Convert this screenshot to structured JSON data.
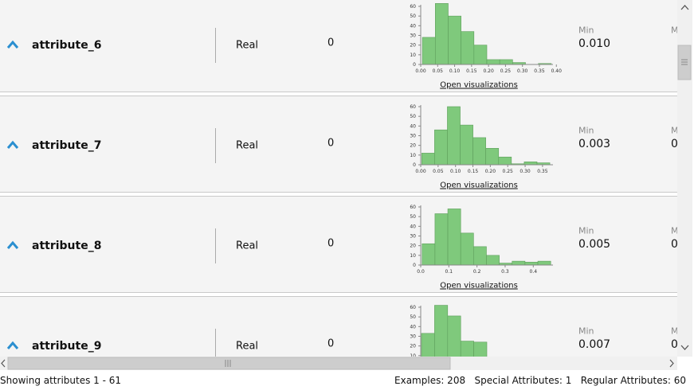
{
  "rows": [
    {
      "name": "attribute_6",
      "type": "Real",
      "missing": "0",
      "link": "Open visualizations",
      "min_label": "Min",
      "min_value": "0.010",
      "next_label": "M",
      "histogram": {
        "bins": [
          0.005,
          0.043,
          0.081,
          0.119,
          0.157,
          0.195,
          0.233,
          0.271,
          0.309,
          0.347,
          0.385
        ],
        "counts": [
          28,
          63,
          50,
          34,
          20,
          5,
          5,
          2,
          0,
          1
        ],
        "xlim": [
          0,
          0.39
        ],
        "ylim": [
          0,
          60
        ],
        "yticks": [
          0,
          10,
          20,
          30,
          40,
          50,
          60
        ],
        "xticks": [
          {
            "value": 0,
            "label": "0.00"
          },
          {
            "value": 0.05,
            "label": "0.05"
          },
          {
            "value": 0.1,
            "label": "0.10"
          },
          {
            "value": 0.15,
            "label": "0.15"
          },
          {
            "value": 0.2,
            "label": "0.20"
          },
          {
            "value": 0.25,
            "label": "0.25"
          },
          {
            "value": 0.3,
            "label": "0.30"
          },
          {
            "value": 0.35,
            "label": "0.35"
          },
          {
            "value": 0.4,
            "label": "0.40"
          }
        ]
      }
    },
    {
      "name": "attribute_7",
      "type": "Real",
      "missing": "0",
      "link": "Open visualizations",
      "min_label": "Min",
      "min_value": "0.003",
      "next_label": "M",
      "next_value": "0",
      "histogram": {
        "bins": [
          0.003,
          0.0398,
          0.0766,
          0.1134,
          0.1502,
          0.187,
          0.2238,
          0.2606,
          0.2974,
          0.3342,
          0.371
        ],
        "counts": [
          12,
          36,
          60,
          41,
          28,
          17,
          8,
          1,
          3,
          2
        ],
        "xlim": [
          0,
          0.38
        ],
        "ylim": [
          0,
          60
        ],
        "yticks": [
          0,
          10,
          20,
          30,
          40,
          50,
          60
        ],
        "xticks": [
          {
            "value": 0,
            "label": "0.00"
          },
          {
            "value": 0.05,
            "label": "0.05"
          },
          {
            "value": 0.1,
            "label": "0.10"
          },
          {
            "value": 0.15,
            "label": "0.15"
          },
          {
            "value": 0.2,
            "label": "0.20"
          },
          {
            "value": 0.25,
            "label": "0.25"
          },
          {
            "value": 0.3,
            "label": "0.30"
          },
          {
            "value": 0.35,
            "label": "0.35"
          }
        ]
      }
    },
    {
      "name": "attribute_8",
      "type": "Real",
      "missing": "0",
      "link": "Open visualizations",
      "min_label": "Min",
      "min_value": "0.005",
      "next_label": "M",
      "next_value": "0",
      "histogram": {
        "bins": [
          0.005,
          0.0507,
          0.0964,
          0.1421,
          0.1878,
          0.2335,
          0.2792,
          0.3249,
          0.3706,
          0.4163,
          0.462
        ],
        "counts": [
          22,
          53,
          58,
          33,
          19,
          10,
          2,
          4,
          3,
          4
        ],
        "xlim": [
          0,
          0.47
        ],
        "ylim": [
          0,
          60
        ],
        "yticks": [
          0,
          10,
          20,
          30,
          40,
          50,
          60
        ],
        "xticks": [
          {
            "value": 0,
            "label": "0.0"
          },
          {
            "value": 0.1,
            "label": "0.1"
          },
          {
            "value": 0.2,
            "label": "0.2"
          },
          {
            "value": 0.3,
            "label": "0.3"
          },
          {
            "value": 0.4,
            "label": "0.4"
          }
        ]
      }
    },
    {
      "name": "attribute_9",
      "type": "Real",
      "missing": "0",
      "min_label": "Min",
      "min_value": "0.007",
      "next_label": "M",
      "next_value": "0",
      "histogram": {
        "counts": [
          33,
          62,
          51,
          25,
          24
        ],
        "ylim": [
          0,
          60
        ],
        "yticks": [
          0,
          10,
          20,
          30,
          40,
          50,
          60
        ]
      }
    }
  ],
  "status": {
    "left": "Showing attributes 1 - 61",
    "examples": "Examples: 208",
    "special": "Special Attributes: 1",
    "regular": "Regular Attributes: 60"
  }
}
